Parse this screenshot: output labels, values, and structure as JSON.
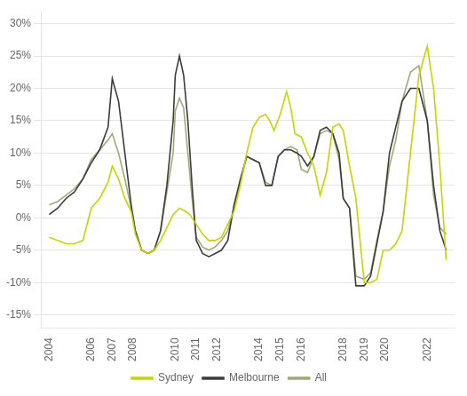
{
  "chart_data": {
    "type": "line",
    "xlim": [
      2003.6,
      2023.3
    ],
    "xticks": [
      2004,
      2006,
      2007,
      2008,
      2010,
      2011,
      2012,
      2014,
      2015,
      2016,
      2018,
      2019,
      2020,
      2022
    ],
    "ylim": [
      -17,
      32
    ],
    "yticks": [
      {
        "value": -15,
        "label": "-15%"
      },
      {
        "value": -10,
        "label": "-10%"
      },
      {
        "value": -5,
        "label": "-5%"
      },
      {
        "value": 0,
        "label": "0%"
      },
      {
        "value": 5,
        "label": "5%"
      },
      {
        "value": 10,
        "label": "10%"
      },
      {
        "value": 15,
        "label": "15%"
      },
      {
        "value": 20,
        "label": "20%"
      },
      {
        "value": 25,
        "label": "25%"
      },
      {
        "value": 30,
        "label": "30%"
      }
    ],
    "grid": "y",
    "legend": "bottom",
    "series": [
      {
        "name": "Sydney",
        "color": "#c8d400",
        "x": [
          2004.0,
          2004.4,
          2004.8,
          2005.2,
          2005.6,
          2006.0,
          2006.4,
          2006.8,
          2007.0,
          2007.3,
          2007.6,
          2007.9,
          2008.1,
          2008.4,
          2008.7,
          2009.0,
          2009.3,
          2009.6,
          2009.9,
          2010.2,
          2010.5,
          2010.7,
          2011.0,
          2011.3,
          2011.6,
          2011.9,
          2012.2,
          2012.5,
          2012.8,
          2013.1,
          2013.4,
          2013.7,
          2014.0,
          2014.3,
          2014.5,
          2014.7,
          2015.0,
          2015.3,
          2015.5,
          2015.7,
          2016.0,
          2016.3,
          2016.6,
          2016.9,
          2017.2,
          2017.5,
          2017.8,
          2018.0,
          2018.3,
          2018.6,
          2019.0,
          2019.3,
          2019.6,
          2019.9,
          2020.2,
          2020.5,
          2020.8,
          2021.2,
          2021.6,
          2022.0,
          2022.3,
          2022.6,
          2022.9
        ],
        "values": [
          -3.0,
          -3.5,
          -4.0,
          -4.0,
          -3.5,
          1.5,
          3.0,
          5.5,
          8.0,
          6.0,
          3.0,
          1.0,
          -2.5,
          -5.0,
          -5.5,
          -5.0,
          -3.5,
          -1.5,
          0.5,
          1.5,
          1.0,
          0.5,
          -1.0,
          -2.5,
          -3.5,
          -3.5,
          -3.0,
          -1.0,
          1.0,
          5.0,
          10.0,
          14.0,
          15.5,
          16.0,
          15.0,
          13.5,
          16.0,
          19.5,
          17.0,
          13.0,
          12.5,
          10.0,
          8.0,
          3.5,
          7.0,
          14.0,
          14.5,
          13.5,
          8.0,
          3.0,
          -10.0,
          -10.0,
          -9.5,
          -5.0,
          -5.0,
          -4.0,
          -2.0,
          10.0,
          22.0,
          26.5,
          20.0,
          8.0,
          -6.5
        ]
      },
      {
        "name": "Melbourne",
        "color": "#3c3c3c",
        "x": [
          2004.0,
          2004.4,
          2004.8,
          2005.2,
          2005.6,
          2006.0,
          2006.4,
          2006.8,
          2007.0,
          2007.3,
          2007.6,
          2007.9,
          2008.1,
          2008.4,
          2008.7,
          2009.0,
          2009.3,
          2009.6,
          2009.9,
          2010.0,
          2010.2,
          2010.4,
          2010.6,
          2010.8,
          2011.0,
          2011.3,
          2011.6,
          2011.9,
          2012.2,
          2012.5,
          2012.8,
          2013.1,
          2013.4,
          2013.7,
          2014.0,
          2014.3,
          2014.6,
          2014.9,
          2015.2,
          2015.5,
          2015.8,
          2016.0,
          2016.3,
          2016.6,
          2016.9,
          2017.2,
          2017.5,
          2017.8,
          2018.0,
          2018.3,
          2018.6,
          2019.0,
          2019.3,
          2019.6,
          2019.9,
          2020.2,
          2020.5,
          2020.8,
          2021.2,
          2021.6,
          2022.0,
          2022.3,
          2022.6,
          2022.9
        ],
        "values": [
          0.5,
          1.5,
          3.0,
          4.0,
          6.0,
          8.5,
          10.5,
          14.0,
          21.5,
          18.0,
          10.0,
          2.0,
          -2.0,
          -5.0,
          -5.5,
          -5.0,
          -2.0,
          5.0,
          15.0,
          22.0,
          25.0,
          22.0,
          15.0,
          5.0,
          -3.5,
          -5.5,
          -6.0,
          -5.5,
          -5.0,
          -3.5,
          2.0,
          6.0,
          9.5,
          9.0,
          8.5,
          5.0,
          5.0,
          9.5,
          10.5,
          10.5,
          10.0,
          9.5,
          8.0,
          9.5,
          13.5,
          14.0,
          13.0,
          10.0,
          3.0,
          1.5,
          -10.5,
          -10.5,
          -9.0,
          -4.0,
          1.0,
          10.0,
          14.0,
          18.0,
          20.0,
          20.0,
          15.0,
          5.0,
          -2.0,
          -5.0
        ]
      },
      {
        "name": "All",
        "color": "#a0a878",
        "x": [
          2004.0,
          2004.4,
          2004.8,
          2005.2,
          2005.6,
          2006.0,
          2006.4,
          2006.8,
          2007.0,
          2007.3,
          2007.6,
          2007.9,
          2008.1,
          2008.4,
          2008.7,
          2009.0,
          2009.3,
          2009.6,
          2009.9,
          2010.0,
          2010.2,
          2010.4,
          2010.6,
          2010.8,
          2011.0,
          2011.3,
          2011.6,
          2011.9,
          2012.2,
          2012.5,
          2012.8,
          2013.1,
          2013.4,
          2013.7,
          2014.0,
          2014.3,
          2014.6,
          2014.9,
          2015.2,
          2015.5,
          2015.8,
          2016.0,
          2016.3,
          2016.6,
          2016.9,
          2017.2,
          2017.5,
          2017.8,
          2018.0,
          2018.3,
          2018.6,
          2019.0,
          2019.3,
          2019.6,
          2019.9,
          2020.2,
          2020.5,
          2020.8,
          2021.2,
          2021.6,
          2022.0,
          2022.3,
          2022.6,
          2022.9
        ],
        "values": [
          2.0,
          2.5,
          3.5,
          4.5,
          6.0,
          9.0,
          10.5,
          12.0,
          13.0,
          10.0,
          6.0,
          1.5,
          -2.0,
          -5.0,
          -5.5,
          -5.0,
          -2.0,
          4.0,
          10.0,
          16.5,
          18.5,
          17.0,
          10.0,
          3.0,
          -3.0,
          -4.5,
          -5.0,
          -4.5,
          -3.5,
          -2.0,
          1.5,
          5.5,
          9.5,
          9.0,
          8.5,
          5.5,
          5.0,
          9.5,
          10.5,
          11.0,
          10.5,
          7.5,
          7.0,
          9.5,
          13.0,
          13.5,
          13.0,
          9.0,
          3.0,
          1.5,
          -9.0,
          -9.5,
          -8.5,
          -3.5,
          1.0,
          8.0,
          12.0,
          18.0,
          22.5,
          23.5,
          15.0,
          3.5,
          -1.5,
          -2.5
        ]
      }
    ]
  }
}
